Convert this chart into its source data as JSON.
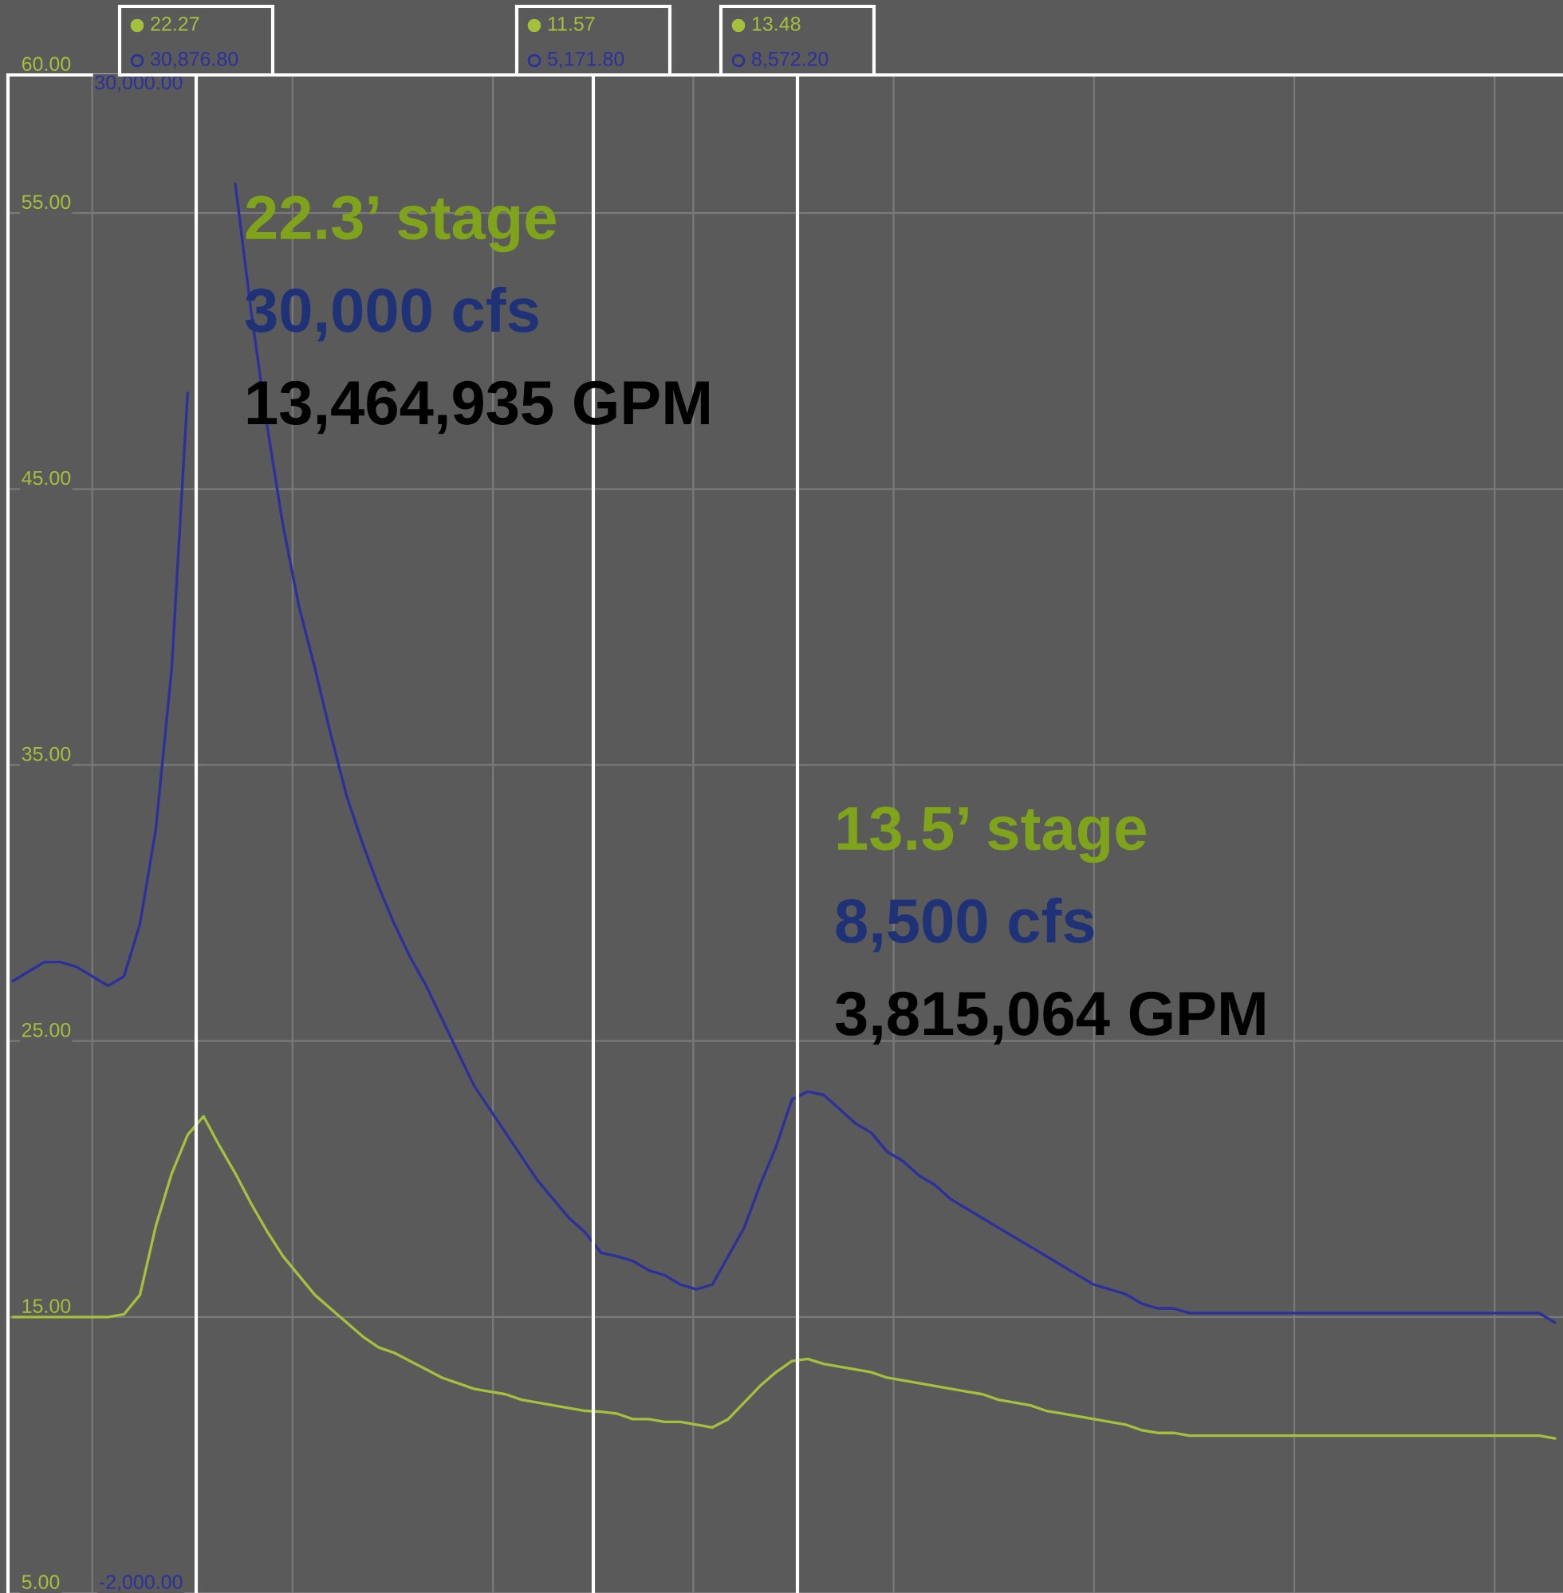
{
  "chart_data": {
    "type": "line",
    "categories": [
      null,
      null,
      null,
      null,
      null,
      null,
      null,
      null,
      null,
      null,
      null,
      null,
      null,
      null,
      null,
      null,
      null,
      null,
      null,
      null,
      null,
      null,
      null,
      null,
      null,
      null,
      null,
      null,
      null,
      null,
      null,
      null,
      null,
      null,
      null,
      null,
      null,
      null,
      null,
      null,
      null,
      null,
      null,
      null,
      null,
      null,
      null,
      null,
      null,
      null,
      null,
      null,
      null,
      null,
      null,
      null,
      null,
      null,
      null,
      null,
      null,
      null,
      null,
      null,
      null,
      null,
      null,
      null,
      null,
      null,
      null,
      null,
      null,
      null,
      null,
      null,
      null,
      null,
      null,
      null,
      null,
      null,
      null,
      null,
      null,
      null,
      null,
      null,
      null,
      null,
      null,
      null,
      null,
      null,
      null,
      null,
      null,
      null
    ],
    "series": [
      {
        "color": "#a4c03c",
        "values": [
          15.0,
          15.0,
          15.0,
          15.0,
          15.0,
          15.0,
          15.0,
          15.1,
          15.8,
          18.3,
          20.2,
          21.6,
          22.27,
          21.2,
          20.2,
          19.1,
          18.1,
          17.2,
          16.5,
          15.8,
          15.3,
          14.8,
          14.3,
          13.9,
          13.7,
          13.4,
          13.1,
          12.8,
          12.6,
          12.4,
          12.3,
          12.2,
          12.0,
          11.9,
          11.8,
          11.7,
          11.6,
          11.57,
          11.5,
          11.3,
          11.3,
          11.2,
          11.2,
          11.1,
          11.0,
          11.3,
          11.9,
          12.5,
          13.0,
          13.4,
          13.48,
          13.3,
          13.2,
          13.1,
          13.0,
          12.8,
          12.7,
          12.6,
          12.5,
          12.4,
          12.3,
          12.2,
          12.0,
          11.9,
          11.8,
          11.6,
          11.5,
          11.4,
          11.3,
          11.2,
          11.1,
          10.9,
          10.8,
          10.8,
          10.7,
          10.7,
          10.7,
          10.7,
          10.7,
          10.7,
          10.7,
          10.7,
          10.7,
          10.7,
          10.7,
          10.7,
          10.7,
          10.7,
          10.7,
          10.7,
          10.7,
          10.7,
          10.7,
          10.7,
          10.7,
          10.7,
          10.7,
          10.6
        ]
      },
      {
        "color": "#2c309c",
        "axis": "y2",
        "values": [
          10900,
          11100,
          11300,
          11300,
          11200,
          11000,
          10800,
          11000,
          12100,
          14100,
          17500,
          23300,
          null,
          null,
          27700,
          25000,
          22600,
          20500,
          18800,
          17500,
          16100,
          14800,
          13800,
          12900,
          12100,
          11400,
          10800,
          10100,
          9400,
          8700,
          8200,
          7700,
          7200,
          6700,
          6300,
          5900,
          5600,
          5170,
          5100,
          5000,
          4800,
          4700,
          4500,
          4400,
          4500,
          5100,
          5700,
          6600,
          7400,
          8400,
          8570,
          8500,
          8200,
          7900,
          7700,
          7300,
          7100,
          6800,
          6600,
          6300,
          6100,
          5900,
          5700,
          5500,
          5300,
          5100,
          4900,
          4700,
          4500,
          4400,
          4300,
          4100,
          4000,
          4000,
          3900,
          3900,
          3900,
          3900,
          3900,
          3900,
          3900,
          3900,
          3900,
          3900,
          3900,
          3900,
          3900,
          3900,
          3900,
          3900,
          3900,
          3900,
          3900,
          3900,
          3900,
          3900,
          3900,
          3700
        ]
      }
    ],
    "ylim": [
      5,
      60
    ],
    "yticks": [
      {
        "value": 5,
        "label": "5.00"
      },
      {
        "value": 15,
        "label": "15.00"
      },
      {
        "value": 25,
        "label": "25.00"
      },
      {
        "value": 35,
        "label": "35.00"
      },
      {
        "value": 45,
        "label": "45.00"
      },
      {
        "value": 55,
        "label": "55.00"
      },
      {
        "value": 60,
        "label": "60.00"
      }
    ],
    "y2lim": [
      -2000,
      30000
    ],
    "y2ticks": [
      {
        "value": -2000,
        "label": "-2,000.00"
      },
      {
        "value": 30000,
        "label": "30,000.00"
      }
    ],
    "annotations": [
      "22.27",
      "30,876.80",
      "11.57",
      "5,171.80",
      "13.48",
      "8,572.20",
      "22.3’ stage",
      "30,000 cfs",
      "13,464,935 GPM",
      "13.5’ stage",
      "8,500 cfs",
      "3,815,064 GPM"
    ],
    "grid": true,
    "tick_labels": "y",
    "line_style": "solid"
  }
}
